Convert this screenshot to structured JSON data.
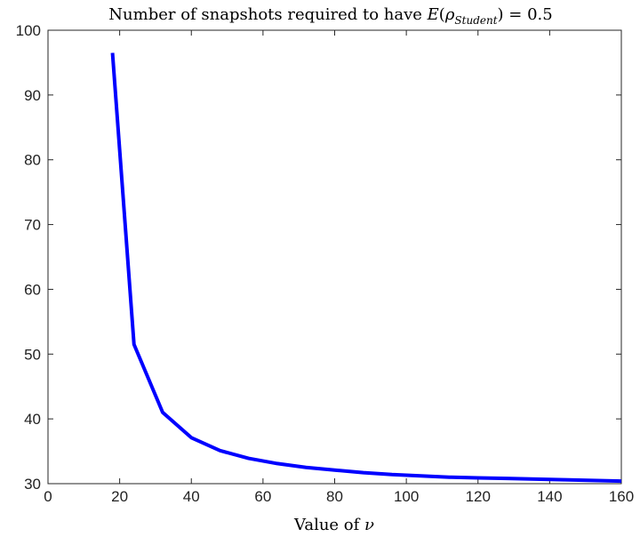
{
  "chart_data": {
    "type": "line",
    "title": {
      "prefix": "Number of snapshots required to have ",
      "math_fn": "E",
      "math_open": "(",
      "math_var": "ρ",
      "math_sub": "Student",
      "math_close": ") = 0.5"
    },
    "xlabel": {
      "text": "Value of ",
      "math": "ν"
    },
    "ylabel": "",
    "xlim": [
      0,
      160
    ],
    "ylim": [
      30,
      100
    ],
    "xticks": [
      0,
      20,
      40,
      60,
      80,
      100,
      120,
      140,
      160
    ],
    "yticks": [
      30,
      40,
      50,
      60,
      70,
      80,
      90,
      100
    ],
    "grid": false,
    "series": [
      {
        "color": "#0000ff",
        "x": [
          18,
          24,
          32,
          40,
          48,
          56,
          64,
          72,
          80,
          88,
          96,
          104,
          112,
          120,
          128,
          136,
          144,
          152,
          160
        ],
        "y": [
          96.5,
          51.5,
          41.0,
          37.1,
          35.1,
          33.9,
          33.1,
          32.5,
          32.1,
          31.7,
          31.4,
          31.2,
          31.0,
          30.9,
          30.8,
          30.7,
          30.6,
          30.5,
          30.4
        ]
      }
    ]
  }
}
